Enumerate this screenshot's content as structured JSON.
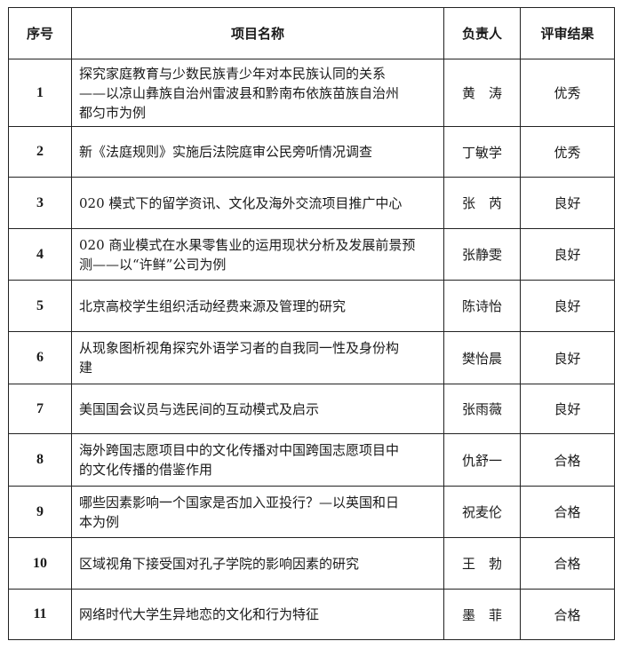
{
  "table": {
    "headers": [
      "序号",
      "项目名称",
      "负责人",
      "评审结果"
    ],
    "rows": [
      {
        "no": "1",
        "name": "探究家庭教育与少数民族青少年对本民族认同的关系\n——以凉山彝族自治州雷波县和黔南布依族苗族自治州\n都匀市为例",
        "leader": "黄　涛",
        "result": "优秀"
      },
      {
        "no": "2",
        "name": "新《法庭规则》实施后法院庭审公民旁听情况调查",
        "leader": "丁敏学",
        "result": "优秀"
      },
      {
        "no": "3",
        "name": "020 模式下的留学资讯、文化及海外交流项目推广中心",
        "leader": "张　芮",
        "result": "良好"
      },
      {
        "no": "4",
        "name": "020 商业模式在水果零售业的运用现状分析及发展前景预\n测——以“许鲜”公司为例",
        "leader": "张静雯",
        "result": "良好"
      },
      {
        "no": "5",
        "name": "北京高校学生组织活动经费来源及管理的研究",
        "leader": "陈诗怡",
        "result": "良好"
      },
      {
        "no": "6",
        "name": "从现象图析视角探究外语学习者的自我同一性及身份构\n建",
        "leader": "樊怡晨",
        "result": "良好"
      },
      {
        "no": "7",
        "name": "美国国会议员与选民间的互动模式及启示",
        "leader": "张雨薇",
        "result": "良好"
      },
      {
        "no": "8",
        "name": "海外跨国志愿项目中的文化传播对中国跨国志愿项目中\n的文化传播的借鉴作用",
        "leader": "仇舒一",
        "result": "合格"
      },
      {
        "no": "9",
        "name": "哪些因素影响一个国家是否加入亚投行？—以英国和日\n本为例",
        "leader": "祝麦伦",
        "result": "合格"
      },
      {
        "no": "10",
        "name": "区域视角下接受国对孔子学院的影响因素的研究",
        "leader": "王　勃",
        "result": "合格"
      },
      {
        "no": "11",
        "name": "网络时代大学生异地恋的文化和行为特征",
        "leader": "墨　菲",
        "result": "合格"
      }
    ]
  }
}
